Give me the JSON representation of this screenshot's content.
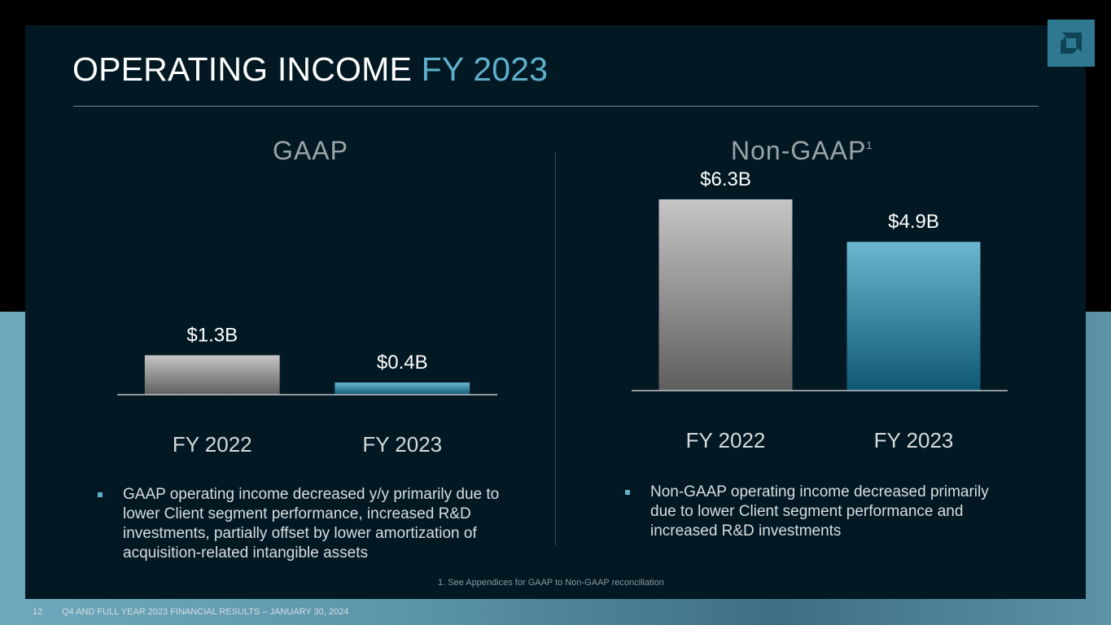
{
  "slide": {
    "title_main": "OPERATING INCOME",
    "title_accent": "FY 2023",
    "footnote": "1. See Appendices for GAAP to Non-GAAP reconciliation",
    "page_number": "12",
    "footer": "Q4 AND FULL YEAR 2023 FINANCIAL RESULTS – JANUARY 30, 2024",
    "logo_icon": "amd-arrow-icon"
  },
  "colors": {
    "accent": "#5fb0cc",
    "bar_prior_top": "#c6c6c6",
    "bar_prior_bottom": "#5e5e5e",
    "bar_current_top": "#6ab7cf",
    "bar_current_bottom": "#0e5874"
  },
  "chart_data": [
    {
      "type": "bar",
      "title": "GAAP",
      "title_sup": "",
      "categories": [
        "FY 2022",
        "FY 2023"
      ],
      "values": [
        1.3,
        0.4
      ],
      "data_labels": [
        "$1.3B",
        "$0.4B"
      ],
      "unit": "$B",
      "ylim": [
        0,
        6.3
      ],
      "xlabel": "",
      "ylabel": "",
      "grid": false,
      "bullet": "GAAP operating income decreased y/y primarily due to lower Client segment performance, increased R&D investments, partially offset by lower amortization of acquisition-related intangible assets"
    },
    {
      "type": "bar",
      "title": "Non-GAAP",
      "title_sup": "1",
      "categories": [
        "FY 2022",
        "FY 2023"
      ],
      "values": [
        6.3,
        4.9
      ],
      "data_labels": [
        "$6.3B",
        "$4.9B"
      ],
      "unit": "$B",
      "ylim": [
        0,
        6.3
      ],
      "xlabel": "",
      "ylabel": "",
      "grid": false,
      "bullet": "Non-GAAP operating income decreased primarily due to lower Client segment performance and increased R&D investments"
    }
  ]
}
